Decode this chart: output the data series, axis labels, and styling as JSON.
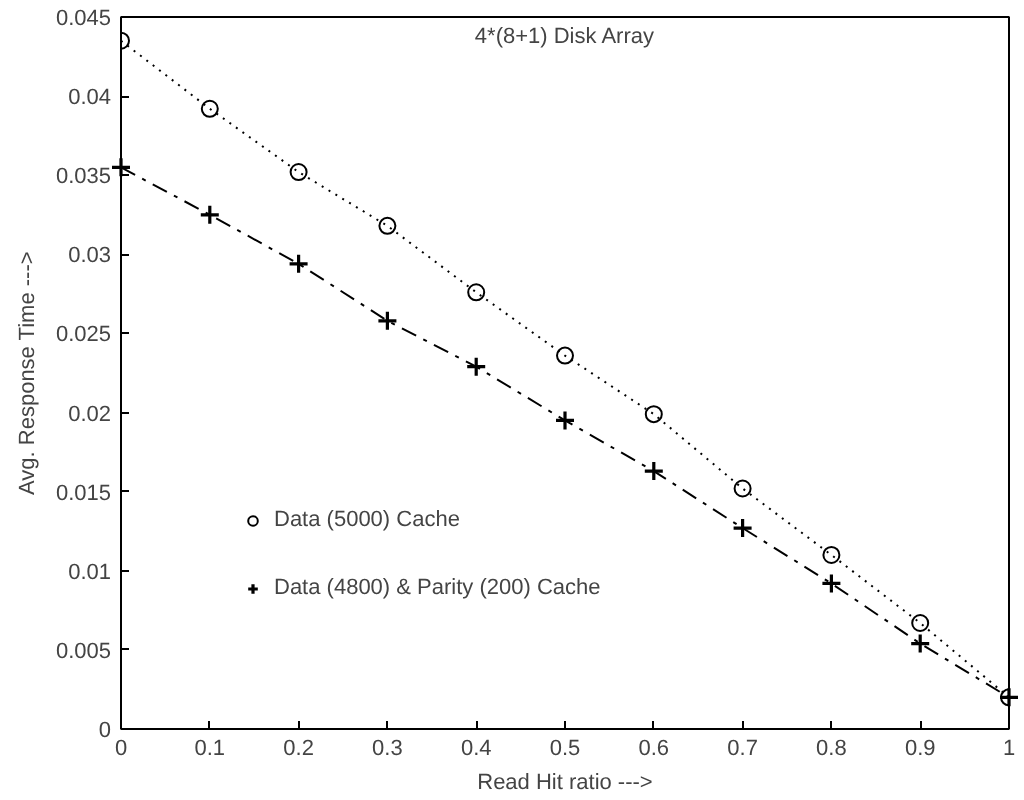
{
  "chart_data": {
    "type": "line",
    "title": "4*(8+1) Disk Array",
    "xlabel": "Read Hit ratio --->",
    "ylabel": "Avg. Response Time --->",
    "x": [
      0,
      0.1,
      0.2,
      0.3,
      0.4,
      0.5,
      0.6,
      0.7,
      0.8,
      0.9,
      1
    ],
    "series": [
      {
        "name": "Data (5000) Cache",
        "color": "#000000",
        "marker": "circle",
        "line_style": "dotted",
        "values": [
          0.0435,
          0.0392,
          0.0352,
          0.0318,
          0.0276,
          0.0236,
          0.0199,
          0.0152,
          0.011,
          0.0067,
          0.002
        ]
      },
      {
        "name": "Data (4800) & Parity (200) Cache",
        "color": "#000000",
        "marker": "cross",
        "line_style": "dashed",
        "values": [
          0.0355,
          0.0325,
          0.0294,
          0.0258,
          0.0229,
          0.0195,
          0.0163,
          0.0127,
          0.0092,
          0.0054,
          0.002
        ]
      }
    ],
    "xlim": [
      0,
      1
    ],
    "ylim": [
      0,
      0.045
    ],
    "xticks": [
      0,
      0.1,
      0.2,
      0.3,
      0.4,
      0.5,
      0.6,
      0.7,
      0.8,
      0.9,
      1
    ],
    "yticks": [
      0,
      0.005,
      0.01,
      0.015,
      0.02,
      0.025,
      0.03,
      0.035,
      0.04,
      0.045
    ],
    "grid": false,
    "legend": "bottom left"
  }
}
